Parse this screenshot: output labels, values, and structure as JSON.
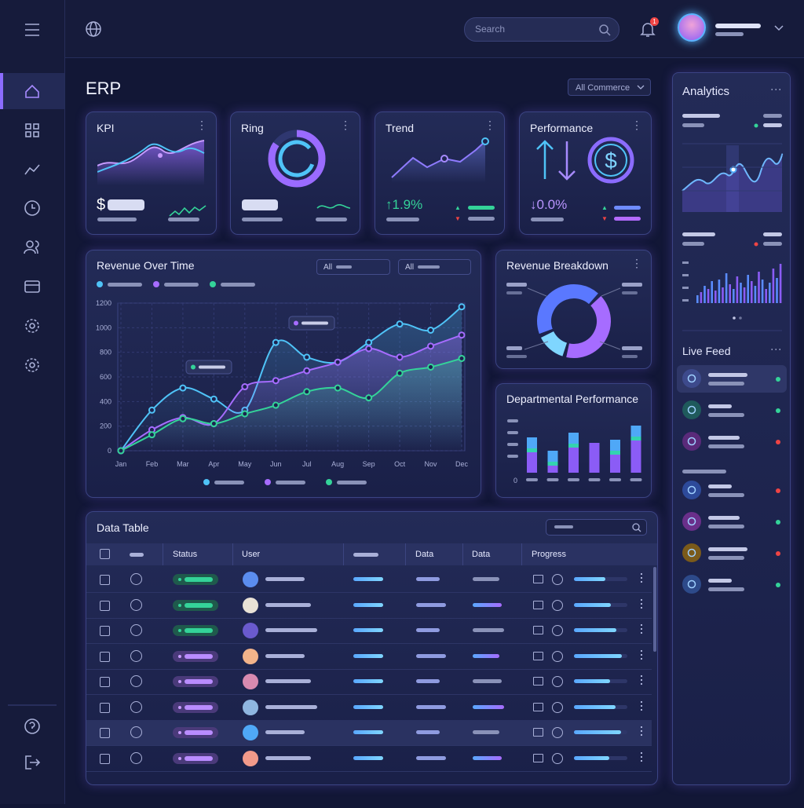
{
  "topbar": {
    "search_placeholder": "Search",
    "notification_count": 1
  },
  "page_title": "ERP",
  "filter": "All Commerce",
  "kpi_cards": [
    {
      "title": "KPI",
      "value_prefix": "$"
    },
    {
      "title": "Ring"
    },
    {
      "title": "Trend",
      "change": "↑1.9%"
    },
    {
      "title": "Performance",
      "change": "↓0.0%"
    }
  ],
  "revenue_chart": {
    "type": "line",
    "title": "Revenue Over Time",
    "filters": [
      "All",
      "All"
    ],
    "categories": [
      "Jan",
      "Feb",
      "Mar",
      "Apr",
      "May",
      "Jun",
      "Jul",
      "Aug",
      "Sep",
      "Oct",
      "Nov",
      "Dec"
    ],
    "series": [
      {
        "color": "#4fc3f7",
        "values": [
          0,
          330,
          510,
          420,
          330,
          880,
          760,
          720,
          880,
          1030,
          980,
          1170
        ]
      },
      {
        "color": "#a66cff",
        "values": [
          0,
          170,
          270,
          220,
          520,
          570,
          650,
          720,
          830,
          760,
          850,
          940
        ]
      },
      {
        "color": "#34d399",
        "values": [
          0,
          130,
          260,
          220,
          300,
          370,
          480,
          510,
          430,
          630,
          680,
          750
        ]
      }
    ],
    "ylim": [
      0,
      1200
    ],
    "yticks": [
      0,
      200,
      400,
      600,
      800,
      1000,
      1200
    ],
    "grid": true
  },
  "revenue_breakdown": {
    "title": "Revenue Breakdown"
  },
  "departmental_performance": {
    "title": "Departmental Performance",
    "axis_label": "0"
  },
  "data_table": {
    "title": "Data Table",
    "columns": [
      "Status",
      "User",
      "Data",
      "Data",
      "Progress"
    ]
  },
  "analytics": {
    "title": "Analytics"
  },
  "live_feed": {
    "title": "Live Feed"
  }
}
